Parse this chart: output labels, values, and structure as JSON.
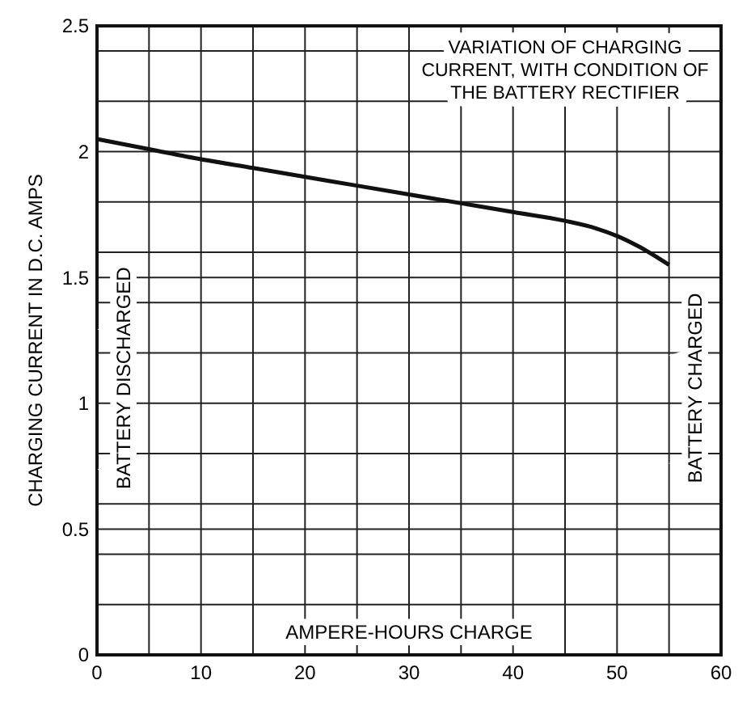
{
  "chart_data": {
    "type": "line",
    "title": "VARIATION OF CHARGING CURRENT, WITH CONDITION OF THE BATTERY RECTIFIER",
    "xlabel": "AMPERE-HOURS CHARGE",
    "ylabel": "CHARGING CURRENT IN D.C. AMPS",
    "annotations": [
      "BATTERY DISCHARGED",
      "BATTERY CHARGED"
    ],
    "x": [
      0,
      5,
      10,
      15,
      20,
      25,
      30,
      35,
      40,
      45,
      48,
      50,
      52,
      55
    ],
    "series": [
      {
        "color": "#111111",
        "values": [
          2.05,
          2.01,
          1.97,
          1.935,
          1.9,
          1.865,
          1.83,
          1.795,
          1.76,
          1.725,
          1.695,
          1.665,
          1.625,
          1.55
        ]
      }
    ],
    "xlim": [
      0,
      60
    ],
    "ylim": [
      0,
      2.5
    ],
    "xticks": [
      0,
      {
        "value": 5,
        "label": null
      },
      10,
      {
        "value": 15,
        "label": null
      },
      20,
      {
        "value": 25,
        "label": null
      },
      30,
      {
        "value": 35,
        "label": null
      },
      40,
      {
        "value": 45,
        "label": null
      },
      50,
      {
        "value": 55,
        "label": null
      },
      60
    ],
    "yticks": [
      0,
      {
        "value": 0.2,
        "label": null
      },
      {
        "value": 0.4,
        "label": null
      },
      0.5,
      {
        "value": 0.6,
        "label": null
      },
      {
        "value": 0.8,
        "label": null
      },
      1.0,
      {
        "value": 1.2,
        "label": null
      },
      {
        "value": 1.4,
        "label": null
      },
      1.5,
      {
        "value": 1.6,
        "label": null
      },
      {
        "value": 1.8,
        "label": null
      },
      2.0,
      {
        "value": 2.2,
        "label": null
      },
      {
        "value": 2.4,
        "label": null
      },
      2.5
    ],
    "grid": true,
    "line_style": "solid",
    "marker": "none"
  }
}
